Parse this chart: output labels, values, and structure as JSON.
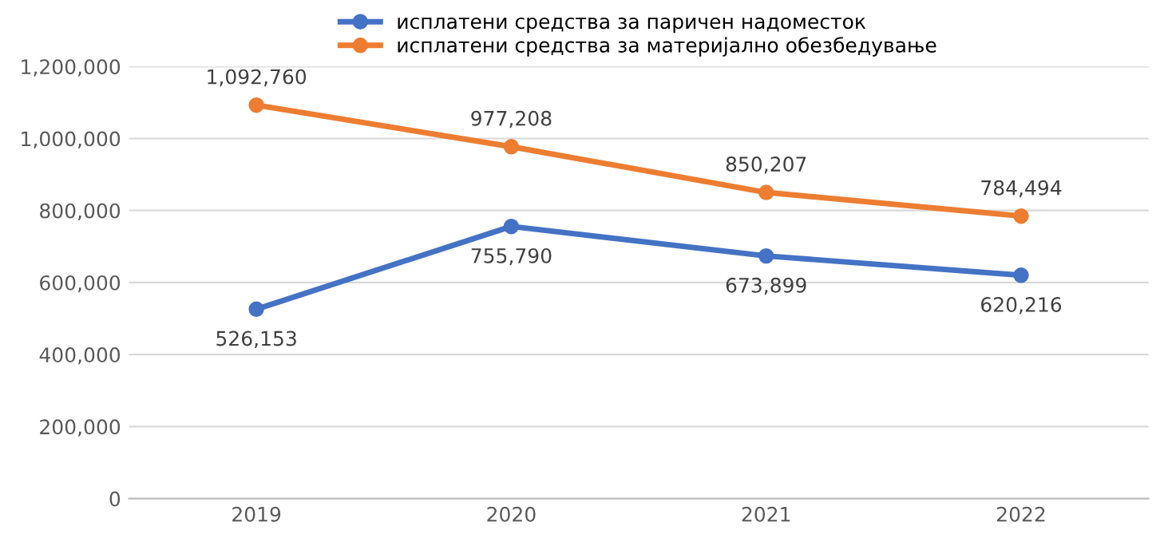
{
  "chart_data": {
    "type": "line",
    "categories": [
      "2019",
      "2020",
      "2021",
      "2022"
    ],
    "series": [
      {
        "name": "исплатени средства за паричен надоместок",
        "color": "#4472c4",
        "values": [
          526153,
          755790,
          673899,
          620216
        ],
        "value_labels": [
          "526,153",
          "755,790",
          "673,899",
          "620,216"
        ]
      },
      {
        "name": "исплатени средства за материјално обезбедување",
        "color": "#ed7d31",
        "values": [
          1092760,
          977208,
          850207,
          784494
        ],
        "value_labels": [
          "1,092,760",
          "977,208",
          "850,207",
          "784,494"
        ]
      }
    ],
    "ylim": [
      0,
      1200000
    ],
    "yticks": [
      {
        "value": 0,
        "label": "0"
      },
      {
        "value": 200000,
        "label": "200,000"
      },
      {
        "value": 400000,
        "label": "400,000"
      },
      {
        "value": 600000,
        "label": "600,000"
      },
      {
        "value": 800000,
        "label": "800,000"
      },
      {
        "value": 1000000,
        "label": "1,000,000"
      },
      {
        "value": 1200000,
        "label": "1,200,000"
      }
    ],
    "grid": "y",
    "legend": "top",
    "marker": "circle",
    "line_style": "solid"
  }
}
